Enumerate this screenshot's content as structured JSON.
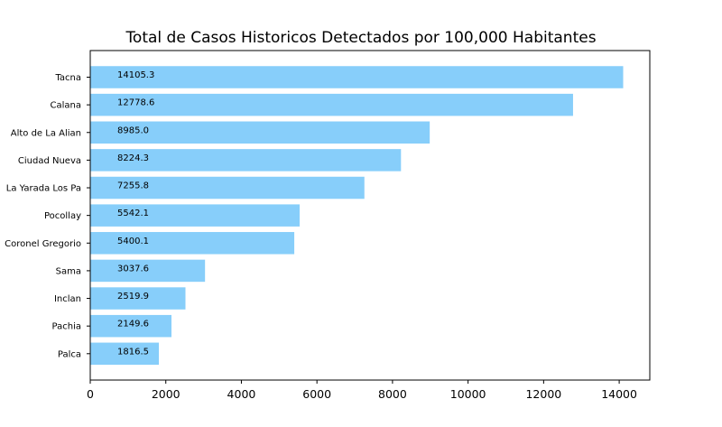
{
  "chart_data": {
    "type": "bar",
    "orientation": "horizontal",
    "title": "Total de Casos Historicos Detectados por 100,000 Habitantes",
    "xlabel": "",
    "ylabel": "",
    "categories": [
      "Tacna",
      "Calana",
      "Alto de La Alian",
      "Ciudad Nueva",
      "La Yarada Los Pa",
      "Pocollay",
      "Coronel Gregorio",
      "Sama",
      "Inclan",
      "Pachia",
      "Palca"
    ],
    "values": [
      14105.3,
      12778.6,
      8985.0,
      8224.3,
      7255.8,
      5542.1,
      5400.1,
      3037.6,
      2519.9,
      2149.6,
      1816.5
    ],
    "value_labels": [
      "14105.3",
      "12778.6",
      "8985.0",
      "8224.3",
      "7255.8",
      "5542.1",
      "5400.1",
      "3037.6",
      "2519.9",
      "2149.6",
      "1816.5"
    ],
    "xlim": [
      0,
      14810
    ],
    "xticks": [
      0,
      2000,
      4000,
      6000,
      8000,
      10000,
      12000,
      14000
    ],
    "xtick_labels": [
      "0",
      "2000",
      "4000",
      "6000",
      "8000",
      "10000",
      "12000",
      "14000"
    ],
    "bar_color": "#87cefa",
    "grid": false,
    "legend": "none"
  }
}
